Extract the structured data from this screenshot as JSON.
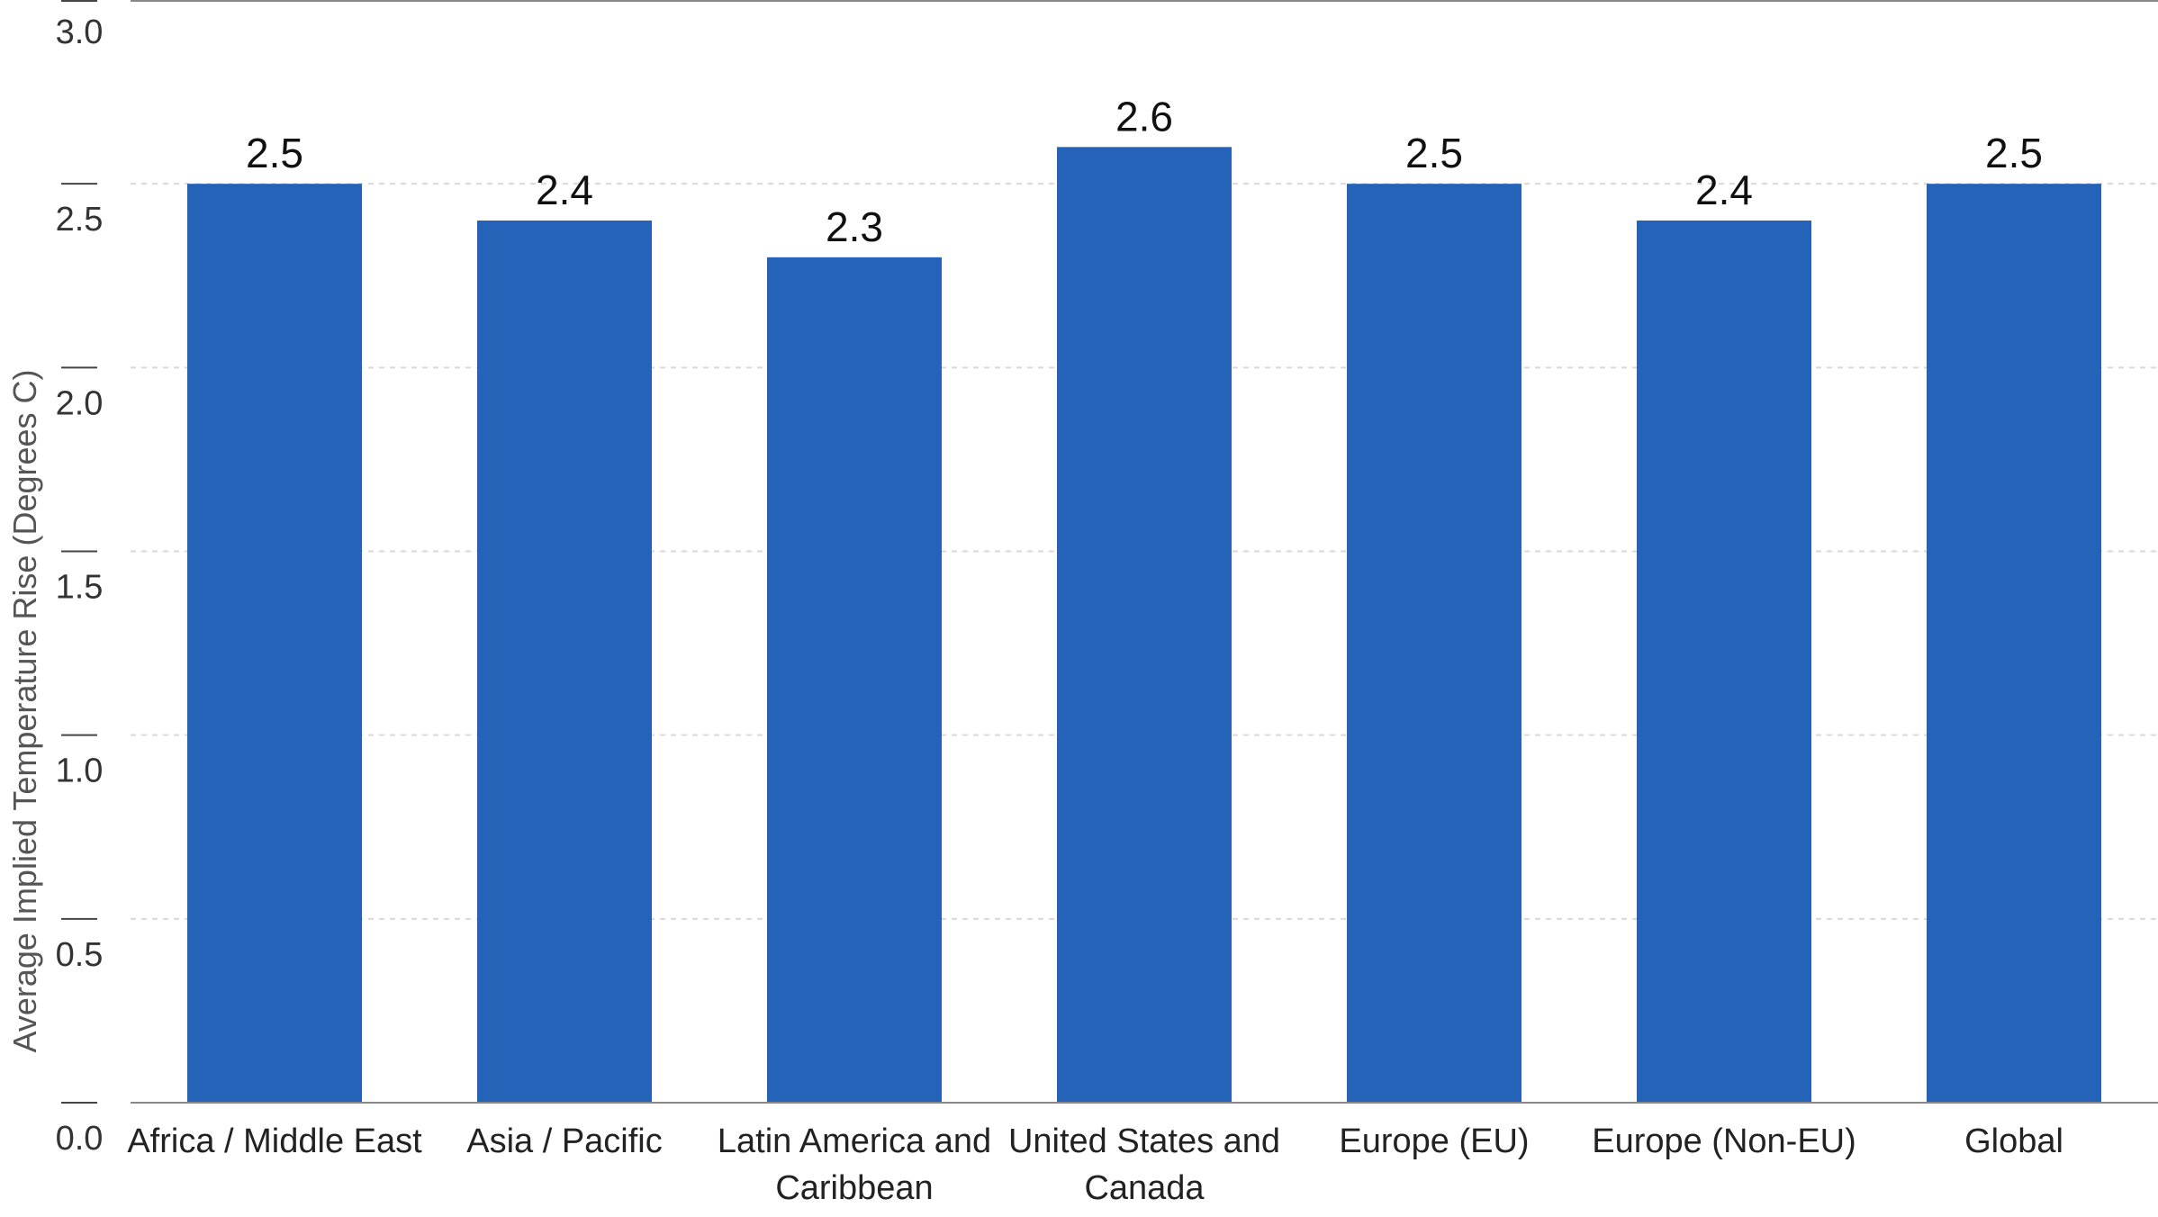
{
  "chart_data": {
    "type": "bar",
    "title": "",
    "xlabel": "",
    "ylabel": "Average Implied Temperature Rise (Degrees C)",
    "ylim": [
      0,
      3.0
    ],
    "yticks": [
      "0.0",
      "0.5",
      "1.0",
      "1.5",
      "2.0",
      "2.5",
      "3.0"
    ],
    "grid": true,
    "legend": "none",
    "bar_color": "#2463b7",
    "categories": [
      [
        "Africa / Middle East"
      ],
      [
        "Asia / Pacific"
      ],
      [
        "Latin America and",
        "Caribbean"
      ],
      [
        "United States and",
        "Canada"
      ],
      [
        "Europe (EU)"
      ],
      [
        "Europe (Non-EU)"
      ],
      [
        "Global"
      ]
    ],
    "values": [
      2.5,
      2.4,
      2.3,
      2.6,
      2.5,
      2.4,
      2.5
    ],
    "value_labels": [
      "2.5",
      "2.4",
      "2.3",
      "2.6",
      "2.5",
      "2.4",
      "2.5"
    ]
  }
}
